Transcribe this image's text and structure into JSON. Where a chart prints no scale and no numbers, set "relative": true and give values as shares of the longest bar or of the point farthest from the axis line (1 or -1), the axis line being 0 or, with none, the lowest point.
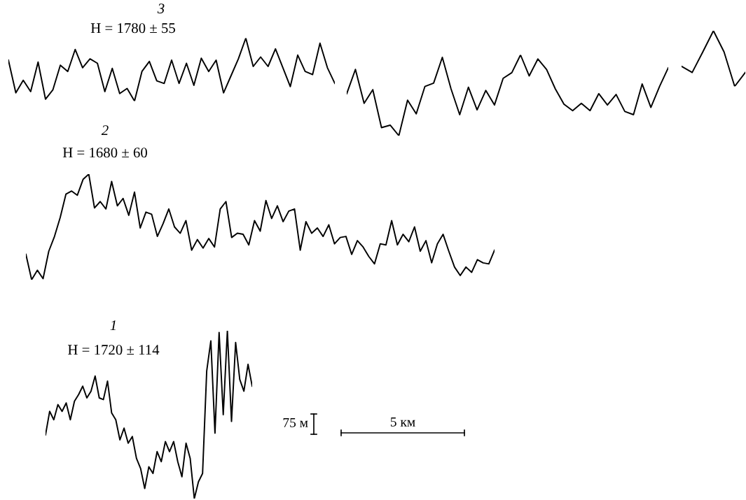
{
  "chart_data": [
    {
      "type": "line",
      "title": "3",
      "subtitle": "H = 1780 ± 55",
      "relative": true,
      "categories": [
        null,
        null,
        null,
        null,
        null,
        null,
        null,
        null,
        null,
        null,
        null,
        null,
        null,
        null,
        null,
        null,
        null,
        null,
        null,
        null,
        null,
        null,
        null,
        null,
        null,
        null,
        null,
        null,
        null,
        null,
        null,
        null,
        null,
        null,
        null,
        null,
        null,
        null,
        null,
        null,
        null,
        null,
        null,
        null,
        null
      ],
      "series": [
        {
          "color": "#000000",
          "values": [
            0.65,
            0.13,
            0.33,
            0.15,
            0.62,
            0.03,
            0.18,
            0.57,
            0.47,
            0.82,
            0.53,
            0.67,
            0.6,
            0.15,
            0.52,
            0.12,
            0.2,
            0,
            0.47,
            0.63,
            0.32,
            0.28,
            0.65,
            0.28,
            0.6,
            0.25,
            0.68,
            0.47,
            0.65,
            0.13,
            0.4,
            0.67,
            1,
            0.55,
            0.7,
            0.55,
            0.83,
            0.53,
            0.23,
            0.73,
            0.47,
            0.42,
            0.92,
            0.53,
            0.28
          ]
        }
      ]
    },
    {
      "type": "line",
      "relative": true,
      "categories": [
        null,
        null,
        null,
        null,
        null,
        null,
        null,
        null,
        null,
        null,
        null,
        null,
        null,
        null,
        null,
        null,
        null,
        null,
        null,
        null,
        null,
        null,
        null,
        null,
        null,
        null,
        null,
        null,
        null,
        null,
        null,
        null,
        null,
        null,
        null,
        null,
        null,
        null
      ],
      "series": [
        {
          "color": "#000000",
          "values": [
            0.52,
            0.82,
            0.4,
            0.57,
            0.1,
            0.13,
            0,
            0.44,
            0.27,
            0.61,
            0.65,
            0.97,
            0.58,
            0.26,
            0.6,
            0.32,
            0.56,
            0.38,
            0.71,
            0.78,
            1,
            0.74,
            0.95,
            0.82,
            0.58,
            0.39,
            0.31,
            0.4,
            0.31,
            0.52,
            0.38,
            0.51,
            0.3,
            0.26,
            0.64,
            0.35,
            0.61,
            0.84
          ]
        }
      ]
    },
    {
      "type": "line",
      "relative": true,
      "categories": [
        null,
        null,
        null,
        null,
        null,
        null,
        null
      ],
      "series": [
        {
          "color": "#000000",
          "values": [
            0.36,
            0.25,
            0.62,
            1,
            0.62,
            0,
            0.25
          ]
        }
      ]
    },
    {
      "type": "line",
      "title": "2",
      "subtitle": "H = 1680 ± 60",
      "relative": true,
      "categories": [
        null,
        null,
        null,
        null,
        null,
        null,
        null,
        null,
        null,
        null,
        null,
        null,
        null,
        null,
        null,
        null,
        null,
        null,
        null,
        null,
        null,
        null,
        null,
        null,
        null,
        null,
        null,
        null,
        null,
        null,
        null,
        null,
        null,
        null,
        null,
        null,
        null,
        null,
        null,
        null,
        null,
        null,
        null,
        null,
        null,
        null,
        null,
        null,
        null,
        null,
        null,
        null,
        null,
        null,
        null,
        null,
        null,
        null,
        null,
        null,
        null,
        null,
        null,
        null,
        null,
        null,
        null,
        null,
        null,
        null,
        null,
        null,
        null,
        null,
        null,
        null,
        null,
        null,
        null,
        null,
        null,
        null,
        null
      ],
      "series": [
        {
          "color": "#000000",
          "values": [
            0.24,
            0,
            0.09,
            0.01,
            0.27,
            0.41,
            0.59,
            0.81,
            0.84,
            0.8,
            0.95,
            1.0,
            0.68,
            0.74,
            0.67,
            0.93,
            0.7,
            0.77,
            0.61,
            0.83,
            0.49,
            0.64,
            0.62,
            0.41,
            0.53,
            0.67,
            0.5,
            0.44,
            0.56,
            0.28,
            0.38,
            0.3,
            0.39,
            0.31,
            0.67,
            0.74,
            0.4,
            0.44,
            0.43,
            0.33,
            0.56,
            0.46,
            0.75,
            0.58,
            0.7,
            0.55,
            0.65,
            0.67,
            0.28,
            0.55,
            0.44,
            0.49,
            0.41,
            0.52,
            0.34,
            0.4,
            0.41,
            0.24,
            0.37,
            0.31,
            0.22,
            0.15,
            0.34,
            0.33,
            0.56,
            0.33,
            0.43,
            0.36,
            0.5,
            0.27,
            0.37,
            0.16,
            0.34,
            0.43,
            0.27,
            0.12,
            0.04,
            0.12,
            0.07,
            0.19,
            0.16,
            0.15,
            0.28
          ]
        }
      ]
    },
    {
      "type": "line",
      "title": "1",
      "subtitle": "H = 1720 ± 114",
      "relative": true,
      "annotations": [
        "75 м",
        "5 км"
      ],
      "categories": [
        null,
        null,
        null,
        null,
        null,
        null,
        null,
        null,
        null,
        null,
        null,
        null,
        null,
        null,
        null,
        null,
        null,
        null,
        null,
        null,
        null,
        null,
        null,
        null,
        null,
        null,
        null,
        null,
        null,
        null,
        null,
        null,
        null,
        null,
        null,
        null,
        null,
        null,
        null,
        null,
        null,
        null,
        null,
        null,
        null,
        null,
        null,
        null,
        null,
        null,
        null
      ],
      "series": [
        {
          "color": "#000000",
          "values": [
            0.38,
            0.52,
            0.47,
            0.56,
            0.52,
            0.57,
            0.47,
            0.58,
            0.62,
            0.67,
            0.6,
            0.64,
            0.73,
            0.6,
            0.59,
            0.7,
            0.51,
            0.47,
            0.35,
            0.42,
            0.33,
            0.37,
            0.24,
            0.18,
            0.06,
            0.19,
            0.15,
            0.28,
            0.22,
            0.34,
            0.28,
            0.34,
            0.22,
            0.13,
            0.33,
            0.24,
            0,
            0.1,
            0.15,
            0.76,
            0.94,
            0.39,
            0.99,
            0.5,
            1,
            0.46,
            0.93,
            0.71,
            0.64,
            0.8,
            0.67
          ]
        }
      ]
    }
  ]
}
